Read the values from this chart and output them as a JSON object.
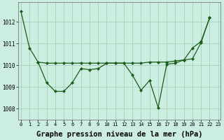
{
  "background_color": "#cceee0",
  "grid_color": "#aad4c0",
  "line_color": "#1a5c1a",
  "xlabel": "Graphe pression niveau de la mer (hPa)",
  "ylim": [
    1007.5,
    1012.9
  ],
  "xlim": [
    -0.3,
    23.3
  ],
  "yticks": [
    1008,
    1009,
    1010,
    1011,
    1012
  ],
  "xticks": [
    0,
    1,
    2,
    3,
    4,
    5,
    6,
    7,
    8,
    9,
    10,
    11,
    12,
    13,
    14,
    15,
    16,
    17,
    18,
    19,
    20,
    21,
    22,
    23
  ],
  "line1_x": [
    0,
    1,
    2,
    3,
    4,
    5,
    6,
    7,
    8,
    9,
    10,
    11,
    12,
    13,
    14,
    15,
    16,
    17,
    18,
    19,
    20,
    21,
    22
  ],
  "line1_y": [
    1012.5,
    1010.8,
    1010.15,
    1010.1,
    1010.1,
    1010.1,
    1010.1,
    1010.1,
    1010.1,
    1010.1,
    1010.1,
    1010.1,
    1010.1,
    1010.1,
    1010.1,
    1010.15,
    1010.15,
    1010.15,
    1010.2,
    1010.25,
    1010.3,
    1011.05,
    1012.2
  ],
  "line2_x": [
    2,
    3,
    4,
    5,
    6,
    7,
    8,
    9,
    10,
    11,
    12,
    13,
    14,
    15,
    16,
    17,
    18,
    19,
    20,
    21,
    22
  ],
  "line2_y": [
    1010.15,
    1009.2,
    1008.8,
    1008.8,
    1009.2,
    1009.85,
    1009.8,
    1009.85,
    1010.1,
    1010.1,
    1010.1,
    1009.55,
    1008.85,
    1009.3,
    1008.05,
    1010.05,
    1010.1,
    1010.25,
    1010.8,
    1011.1,
    1012.2
  ]
}
